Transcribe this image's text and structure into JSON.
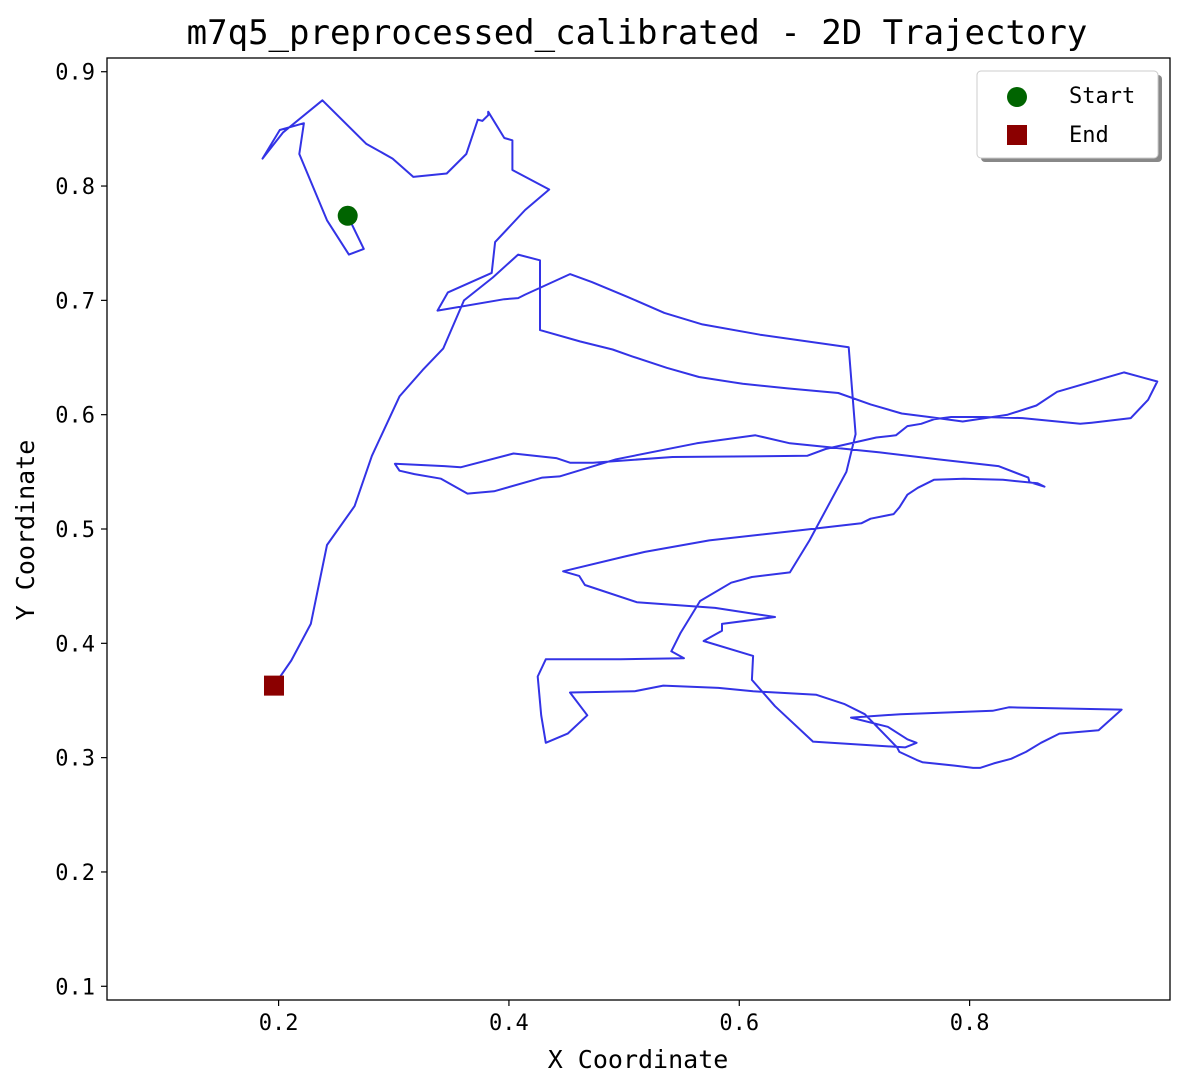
{
  "chart_data": {
    "type": "line",
    "title": "m7q5_preprocessed_calibrated - 2D Trajectory",
    "xlabel": "X Coordinate",
    "ylabel": "Y Coordinate",
    "xlim": [
      0.051,
      0.974
    ],
    "ylim": [
      0.088,
      0.912
    ],
    "xticks": [
      0.2,
      0.4,
      0.6,
      0.8
    ],
    "xtick_labels": [
      "0.2",
      "0.4",
      "0.6",
      "0.8"
    ],
    "yticks": [
      0.1,
      0.2,
      0.3,
      0.4,
      0.5,
      0.6,
      0.7,
      0.8,
      0.9
    ],
    "ytick_labels": [
      "0.1",
      "0.2",
      "0.3",
      "0.4",
      "0.5",
      "0.6",
      "0.7",
      "0.8",
      "0.9"
    ],
    "grid": false,
    "legend_position": "top-right",
    "line_color": "#3333e6",
    "start_color": "#006400",
    "end_color": "#8b0000",
    "start": {
      "label": "Start",
      "x": 0.26,
      "y": 0.774
    },
    "end": {
      "label": "End",
      "x": 0.196,
      "y": 0.363
    },
    "x": [
      0.26,
      0.274,
      0.261,
      0.242,
      0.218,
      0.222,
      0.201,
      0.186,
      0.204,
      0.238,
      0.276,
      0.299,
      0.317,
      0.346,
      0.363,
      0.373,
      0.377,
      0.382,
      0.382,
      0.396,
      0.403,
      0.403,
      0.435,
      0.414,
      0.388,
      0.385,
      0.347,
      0.338,
      0.396,
      0.408,
      0.414,
      0.453,
      0.472,
      0.503,
      0.535,
      0.568,
      0.618,
      0.695,
      0.701,
      0.693,
      0.661,
      0.644,
      0.611,
      0.593,
      0.566,
      0.549,
      0.541,
      0.552,
      0.497,
      0.432,
      0.425,
      0.428,
      0.432,
      0.451,
      0.468,
      0.453,
      0.509,
      0.534,
      0.582,
      0.612,
      0.667,
      0.691,
      0.709,
      0.737,
      0.739,
      0.754,
      0.759,
      0.787,
      0.803,
      0.809,
      0.821,
      0.836,
      0.849,
      0.862,
      0.878,
      0.912,
      0.932,
      0.834,
      0.82,
      0.74,
      0.697,
      0.729,
      0.746,
      0.754,
      0.744,
      0.664,
      0.631,
      0.611,
      0.612,
      0.569,
      0.585,
      0.585,
      0.631,
      0.618,
      0.579,
      0.511,
      0.466,
      0.461,
      0.447,
      0.501,
      0.518,
      0.574,
      0.654,
      0.706,
      0.714,
      0.734,
      0.739,
      0.746,
      0.755,
      0.769,
      0.795,
      0.829,
      0.859,
      0.865,
      0.852,
      0.851,
      0.825,
      0.772,
      0.722,
      0.644,
      0.614,
      0.563,
      0.493,
      0.444,
      0.429,
      0.387,
      0.364,
      0.341,
      0.318,
      0.305,
      0.301,
      0.344,
      0.358,
      0.404,
      0.441,
      0.453,
      0.473,
      0.542,
      0.659,
      0.675,
      0.719,
      0.736,
      0.746,
      0.758,
      0.769,
      0.784,
      0.812,
      0.846,
      0.896,
      0.906,
      0.94,
      0.955,
      0.963,
      0.934,
      0.876,
      0.858,
      0.833,
      0.794,
      0.765,
      0.741,
      0.714,
      0.686,
      0.642,
      0.603,
      0.565,
      0.537,
      0.507,
      0.49,
      0.462,
      0.427,
      0.427,
      0.427,
      0.408,
      0.386,
      0.361,
      0.343,
      0.325,
      0.305,
      0.281,
      0.266,
      0.242,
      0.228,
      0.211,
      0.196
    ],
    "y": [
      0.774,
      0.745,
      0.74,
      0.77,
      0.828,
      0.855,
      0.849,
      0.824,
      0.847,
      0.875,
      0.837,
      0.824,
      0.808,
      0.811,
      0.828,
      0.858,
      0.857,
      0.862,
      0.865,
      0.842,
      0.84,
      0.814,
      0.797,
      0.779,
      0.751,
      0.724,
      0.707,
      0.691,
      0.701,
      0.702,
      0.705,
      0.723,
      0.716,
      0.703,
      0.689,
      0.679,
      0.67,
      0.659,
      0.583,
      0.55,
      0.49,
      0.462,
      0.458,
      0.453,
      0.437,
      0.409,
      0.393,
      0.387,
      0.386,
      0.386,
      0.371,
      0.337,
      0.313,
      0.321,
      0.337,
      0.357,
      0.358,
      0.363,
      0.361,
      0.358,
      0.355,
      0.347,
      0.338,
      0.309,
      0.305,
      0.298,
      0.296,
      0.293,
      0.291,
      0.291,
      0.295,
      0.299,
      0.305,
      0.313,
      0.321,
      0.324,
      0.342,
      0.344,
      0.341,
      0.338,
      0.335,
      0.327,
      0.316,
      0.313,
      0.309,
      0.314,
      0.345,
      0.368,
      0.389,
      0.402,
      0.411,
      0.417,
      0.423,
      0.425,
      0.431,
      0.436,
      0.451,
      0.459,
      0.463,
      0.476,
      0.48,
      0.49,
      0.499,
      0.505,
      0.509,
      0.513,
      0.519,
      0.53,
      0.536,
      0.543,
      0.544,
      0.543,
      0.54,
      0.537,
      0.541,
      0.545,
      0.555,
      0.561,
      0.567,
      0.575,
      0.582,
      0.575,
      0.561,
      0.546,
      0.545,
      0.533,
      0.531,
      0.544,
      0.548,
      0.551,
      0.557,
      0.555,
      0.554,
      0.566,
      0.562,
      0.558,
      0.558,
      0.563,
      0.564,
      0.57,
      0.58,
      0.582,
      0.59,
      0.592,
      0.596,
      0.598,
      0.598,
      0.597,
      0.592,
      0.593,
      0.597,
      0.613,
      0.629,
      0.637,
      0.62,
      0.608,
      0.6,
      0.594,
      0.598,
      0.601,
      0.609,
      0.619,
      0.623,
      0.627,
      0.633,
      0.641,
      0.651,
      0.657,
      0.664,
      0.674,
      0.71,
      0.735,
      0.74,
      0.72,
      0.7,
      0.658,
      0.639,
      0.616,
      0.564,
      0.52,
      0.486,
      0.417,
      0.385,
      0.363
    ]
  }
}
